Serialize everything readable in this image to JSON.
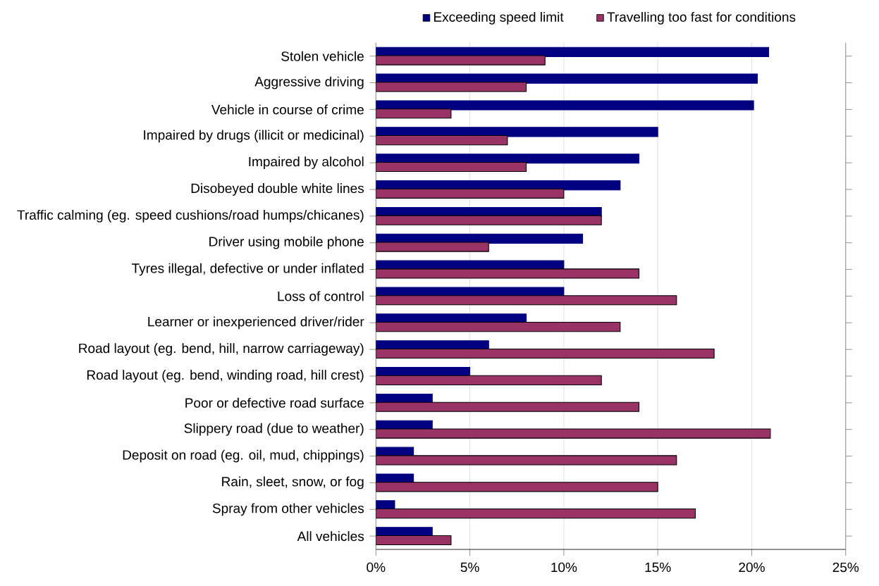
{
  "chart_data": {
    "type": "bar",
    "orientation": "horizontal",
    "categories": [
      "Stolen vehicle",
      "Aggressive driving",
      "Vehicle in course of crime",
      "Impaired by drugs (illicit or medicinal)",
      "Impaired by  alcohol",
      "Disobeyed double white lines",
      "Traffic calming (eg. speed cushions/road humps/chicanes)",
      "Driver using mobile phone",
      "Tyres illegal, defective or under inflated",
      "Loss of control",
      "Learner or inexperienced driver/rider",
      "Road layout (eg. bend, hill, narrow carriageway)",
      "Road layout (eg. bend, winding road, hill crest)",
      "Poor or defective road surface",
      "Slippery road (due to weather)",
      "Deposit on road (eg. oil, mud, chippings)",
      "Rain, sleet, snow, or fog",
      "Spray from other vehicles",
      "All vehicles"
    ],
    "series": [
      {
        "name": "Exceeding speed limit",
        "color": "#000080",
        "values": [
          20.9,
          20.3,
          20.1,
          15,
          14,
          13,
          12,
          11,
          10,
          10,
          8,
          6,
          5,
          3,
          3,
          2,
          2,
          1,
          3
        ]
      },
      {
        "name": "Travelling too fast for conditions",
        "color": "#993366",
        "values": [
          9,
          8,
          4,
          7,
          8,
          10,
          12,
          6,
          14,
          16,
          13,
          18,
          12,
          14,
          21,
          16,
          15,
          17,
          4
        ]
      }
    ],
    "xlim": [
      0,
      25
    ],
    "xticks": [
      {
        "value": 0,
        "label": "0%"
      },
      {
        "value": 5,
        "label": "5%"
      },
      {
        "value": 10,
        "label": "10%"
      },
      {
        "value": 15,
        "label": "15%"
      },
      {
        "value": 20,
        "label": "20%"
      },
      {
        "value": 25,
        "label": "25%"
      }
    ],
    "grid": "x",
    "legend": "top"
  }
}
